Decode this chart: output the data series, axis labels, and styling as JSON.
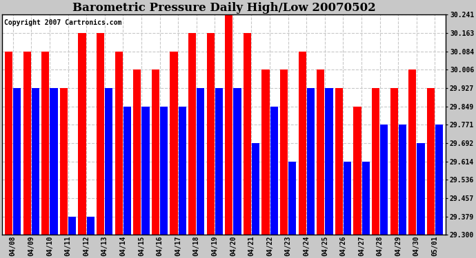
{
  "title": "Barometric Pressure Daily High/Low 20070502",
  "copyright": "Copyright 2007 Cartronics.com",
  "dates": [
    "04/08",
    "04/09",
    "04/10",
    "04/11",
    "04/12",
    "04/13",
    "04/14",
    "04/15",
    "04/16",
    "04/17",
    "04/18",
    "04/19",
    "04/20",
    "04/21",
    "04/22",
    "04/23",
    "04/24",
    "04/25",
    "04/26",
    "04/27",
    "04/28",
    "04/29",
    "04/30",
    "05/01"
  ],
  "highs": [
    30.084,
    30.084,
    30.084,
    29.927,
    30.163,
    30.163,
    30.084,
    30.006,
    30.006,
    30.084,
    30.163,
    30.163,
    30.241,
    30.163,
    30.006,
    30.006,
    30.084,
    30.006,
    29.927,
    29.849,
    29.927,
    29.927,
    30.006,
    29.927
  ],
  "lows": [
    29.927,
    29.927,
    29.927,
    29.379,
    29.379,
    29.927,
    29.849,
    29.849,
    29.849,
    29.849,
    29.927,
    29.927,
    29.927,
    29.692,
    29.849,
    29.614,
    29.927,
    29.927,
    29.614,
    29.614,
    29.771,
    29.771,
    29.692,
    29.771
  ],
  "ymin": 29.3,
  "ymax": 30.241,
  "yticks": [
    29.3,
    29.379,
    29.457,
    29.536,
    29.614,
    29.692,
    29.771,
    29.849,
    29.927,
    30.006,
    30.084,
    30.163,
    30.241
  ],
  "high_color": "#ff0000",
  "low_color": "#0000ff",
  "bg_color": "#c8c8c8",
  "plot_bg_color": "#ffffff",
  "grid_color": "#c8c8c8",
  "title_fontsize": 12,
  "tick_fontsize": 7,
  "copyright_fontsize": 7,
  "bar_gap": 0.04
}
